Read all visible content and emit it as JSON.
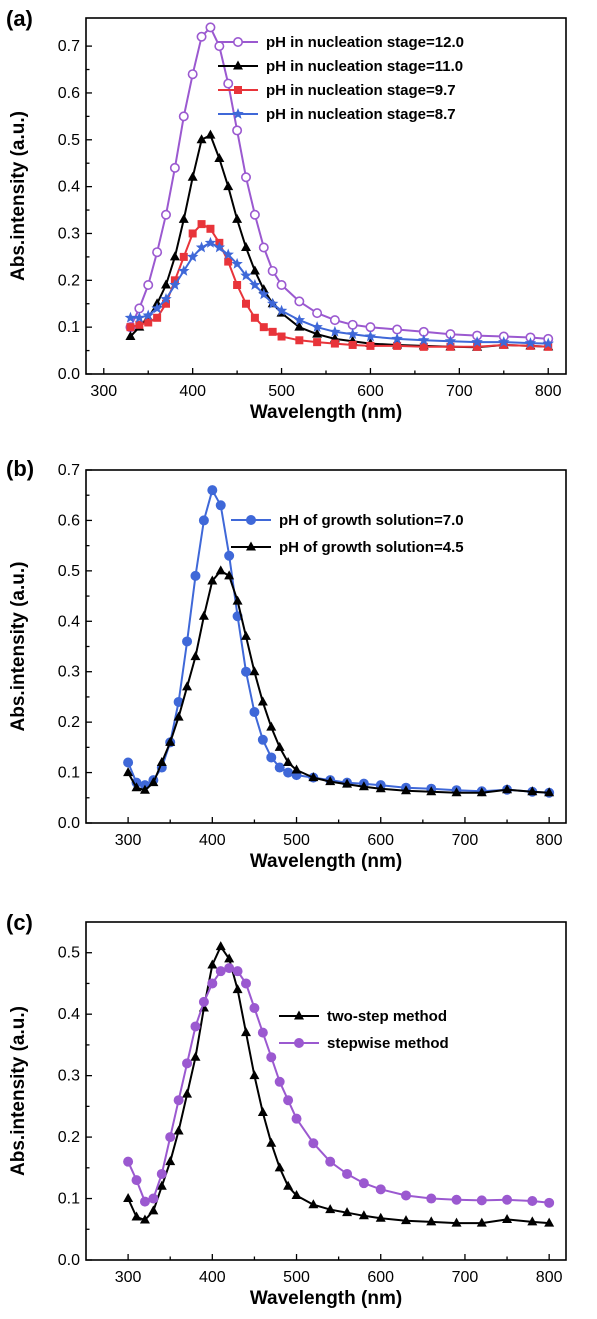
{
  "chart_data": [
    {
      "type": "line",
      "panel_label": "(a)",
      "xlabel": "Wavelength (nm)",
      "ylabel": "Abs.intensity (a.u.)",
      "xlim": [
        280,
        820
      ],
      "ylim": [
        0.0,
        0.76
      ],
      "xticks": [
        300,
        400,
        500,
        600,
        700,
        800
      ],
      "yticks": [
        0.0,
        0.1,
        0.2,
        0.3,
        0.4,
        0.5,
        0.6,
        0.7
      ],
      "legend_position": "top-right",
      "series": [
        {
          "name": "pH in nucleation stage=12.0",
          "color": "#9b59d0",
          "marker": "open-circle",
          "x": [
            330,
            340,
            350,
            360,
            370,
            380,
            390,
            400,
            410,
            420,
            430,
            440,
            450,
            460,
            470,
            480,
            490,
            500,
            520,
            540,
            560,
            580,
            600,
            630,
            660,
            690,
            720,
            750,
            780,
            800
          ],
          "y": [
            0.1,
            0.14,
            0.19,
            0.26,
            0.34,
            0.44,
            0.55,
            0.64,
            0.72,
            0.74,
            0.7,
            0.62,
            0.52,
            0.42,
            0.34,
            0.27,
            0.22,
            0.19,
            0.155,
            0.13,
            0.115,
            0.105,
            0.1,
            0.095,
            0.09,
            0.085,
            0.082,
            0.08,
            0.078,
            0.075
          ]
        },
        {
          "name": "pH in nucleation stage=11.0",
          "color": "#000000",
          "marker": "triangle",
          "x": [
            330,
            340,
            350,
            360,
            370,
            380,
            390,
            400,
            410,
            420,
            430,
            440,
            450,
            460,
            470,
            480,
            490,
            500,
            520,
            540,
            560,
            580,
            600,
            630,
            660,
            690,
            720,
            750,
            780,
            800
          ],
          "y": [
            0.08,
            0.1,
            0.12,
            0.15,
            0.19,
            0.25,
            0.33,
            0.42,
            0.5,
            0.51,
            0.46,
            0.4,
            0.33,
            0.27,
            0.22,
            0.18,
            0.15,
            0.13,
            0.1,
            0.085,
            0.075,
            0.07,
            0.065,
            0.062,
            0.06,
            0.058,
            0.057,
            0.062,
            0.06,
            0.058
          ]
        },
        {
          "name": "pH in nucleation stage=9.7",
          "color": "#e8343a",
          "marker": "square",
          "x": [
            330,
            340,
            350,
            360,
            370,
            380,
            390,
            400,
            410,
            420,
            430,
            440,
            450,
            460,
            470,
            480,
            490,
            500,
            520,
            540,
            560,
            580,
            600,
            630,
            660,
            690,
            720,
            750,
            780,
            800
          ],
          "y": [
            0.1,
            0.105,
            0.11,
            0.12,
            0.15,
            0.2,
            0.25,
            0.3,
            0.32,
            0.31,
            0.28,
            0.24,
            0.19,
            0.15,
            0.12,
            0.1,
            0.09,
            0.08,
            0.072,
            0.068,
            0.065,
            0.062,
            0.06,
            0.06,
            0.058,
            0.058,
            0.058,
            0.062,
            0.06,
            0.058
          ]
        },
        {
          "name": "pH in nucleation stage=8.7",
          "color": "#3f68d8",
          "marker": "star",
          "x": [
            330,
            340,
            350,
            360,
            370,
            380,
            390,
            400,
            410,
            420,
            430,
            440,
            450,
            460,
            470,
            480,
            490,
            500,
            520,
            540,
            560,
            580,
            600,
            630,
            660,
            690,
            720,
            750,
            780,
            800
          ],
          "y": [
            0.12,
            0.12,
            0.125,
            0.14,
            0.16,
            0.19,
            0.22,
            0.25,
            0.27,
            0.28,
            0.27,
            0.255,
            0.235,
            0.21,
            0.19,
            0.17,
            0.15,
            0.135,
            0.115,
            0.1,
            0.09,
            0.085,
            0.08,
            0.075,
            0.072,
            0.07,
            0.068,
            0.068,
            0.066,
            0.065
          ]
        }
      ]
    },
    {
      "type": "line",
      "panel_label": "(b)",
      "xlabel": "Wavelength (nm)",
      "ylabel": "Abs.intensity (a.u.)",
      "xlim": [
        250,
        820
      ],
      "ylim": [
        0.0,
        0.7
      ],
      "xticks": [
        300,
        400,
        500,
        600,
        700,
        800
      ],
      "yticks": [
        0.0,
        0.1,
        0.2,
        0.3,
        0.4,
        0.5,
        0.6,
        0.7
      ],
      "legend_position": "top-right",
      "series": [
        {
          "name": "pH of growth solution=7.0",
          "color": "#3f68d8",
          "marker": "filled-circle",
          "x": [
            300,
            310,
            320,
            330,
            340,
            350,
            360,
            370,
            380,
            390,
            400,
            410,
            420,
            430,
            440,
            450,
            460,
            470,
            480,
            490,
            500,
            520,
            540,
            560,
            580,
            600,
            630,
            660,
            690,
            720,
            750,
            780,
            800
          ],
          "y": [
            0.12,
            0.08,
            0.075,
            0.085,
            0.11,
            0.16,
            0.24,
            0.36,
            0.49,
            0.6,
            0.66,
            0.63,
            0.53,
            0.41,
            0.3,
            0.22,
            0.165,
            0.13,
            0.11,
            0.1,
            0.095,
            0.09,
            0.085,
            0.08,
            0.078,
            0.075,
            0.07,
            0.068,
            0.065,
            0.063,
            0.066,
            0.062,
            0.06
          ]
        },
        {
          "name": "pH of growth solution=4.5",
          "color": "#000000",
          "marker": "triangle",
          "x": [
            300,
            310,
            320,
            330,
            340,
            350,
            360,
            370,
            380,
            390,
            400,
            410,
            420,
            430,
            440,
            450,
            460,
            470,
            480,
            490,
            500,
            520,
            540,
            560,
            580,
            600,
            630,
            660,
            690,
            720,
            750,
            780,
            800
          ],
          "y": [
            0.1,
            0.07,
            0.065,
            0.08,
            0.12,
            0.16,
            0.21,
            0.27,
            0.33,
            0.41,
            0.48,
            0.5,
            0.49,
            0.44,
            0.37,
            0.3,
            0.24,
            0.19,
            0.15,
            0.12,
            0.105,
            0.09,
            0.082,
            0.077,
            0.072,
            0.068,
            0.064,
            0.062,
            0.06,
            0.06,
            0.066,
            0.062,
            0.06
          ]
        }
      ]
    },
    {
      "type": "line",
      "panel_label": "(c)",
      "xlabel": "Wavelength (nm)",
      "ylabel": "Abs.intensity (a.u.)",
      "xlim": [
        250,
        820
      ],
      "ylim": [
        0.0,
        0.55
      ],
      "xticks": [
        300,
        400,
        500,
        600,
        700,
        800
      ],
      "yticks": [
        0.0,
        0.1,
        0.2,
        0.3,
        0.4,
        0.5
      ],
      "legend_position": "top-right",
      "series": [
        {
          "name": "two-step method",
          "color": "#000000",
          "marker": "triangle",
          "x": [
            300,
            310,
            320,
            330,
            340,
            350,
            360,
            370,
            380,
            390,
            400,
            410,
            420,
            430,
            440,
            450,
            460,
            470,
            480,
            490,
            500,
            520,
            540,
            560,
            580,
            600,
            630,
            660,
            690,
            720,
            750,
            780,
            800
          ],
          "y": [
            0.1,
            0.07,
            0.065,
            0.08,
            0.12,
            0.16,
            0.21,
            0.27,
            0.33,
            0.41,
            0.48,
            0.51,
            0.49,
            0.44,
            0.37,
            0.3,
            0.24,
            0.19,
            0.15,
            0.12,
            0.105,
            0.09,
            0.082,
            0.077,
            0.072,
            0.068,
            0.064,
            0.062,
            0.06,
            0.06,
            0.066,
            0.062,
            0.06
          ]
        },
        {
          "name": "stepwise method",
          "color": "#9b59d0",
          "marker": "filled-circle",
          "x": [
            300,
            310,
            320,
            330,
            340,
            350,
            360,
            370,
            380,
            390,
            400,
            410,
            420,
            430,
            440,
            450,
            460,
            470,
            480,
            490,
            500,
            520,
            540,
            560,
            580,
            600,
            630,
            660,
            690,
            720,
            750,
            780,
            800
          ],
          "y": [
            0.16,
            0.13,
            0.095,
            0.1,
            0.14,
            0.2,
            0.26,
            0.32,
            0.38,
            0.42,
            0.45,
            0.47,
            0.475,
            0.47,
            0.45,
            0.41,
            0.37,
            0.33,
            0.29,
            0.26,
            0.23,
            0.19,
            0.16,
            0.14,
            0.125,
            0.115,
            0.105,
            0.1,
            0.098,
            0.097,
            0.098,
            0.096,
            0.093
          ]
        }
      ]
    }
  ]
}
